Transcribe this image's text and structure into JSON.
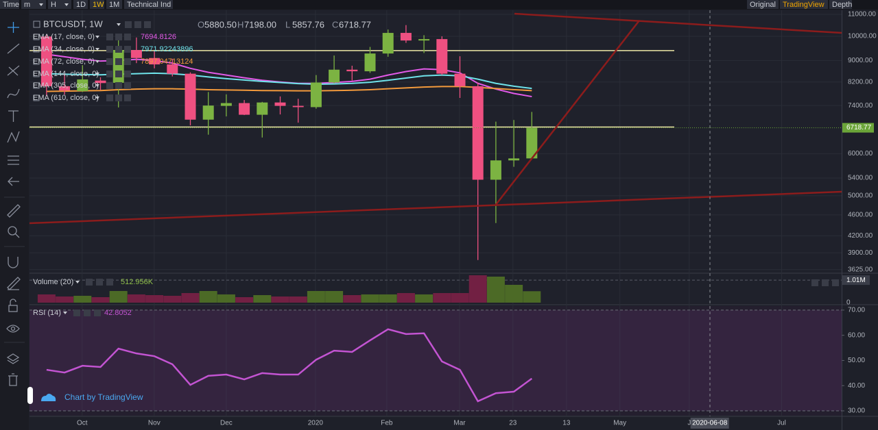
{
  "toolbar": {
    "left": [
      "Time",
      "m",
      "H",
      "1D",
      "1W",
      "1M",
      "Technical Ind"
    ],
    "right": [
      "Original",
      "TradingView",
      "Depth"
    ]
  },
  "chart_data": [
    {
      "type": "candlestick",
      "symbol": "BTCUSDT, 1W",
      "ohlc_legend": [
        {
          "key": "O",
          "label": "5880.50"
        },
        {
          "key": "H",
          "label": "7198.00"
        },
        {
          "key": "L",
          "label": "5857.76"
        },
        {
          "key": "C",
          "label": "6718.77"
        }
      ],
      "open": [
        9990,
        8050,
        7880,
        8250,
        8170,
        9420,
        9100,
        8850,
        8500,
        6960,
        7390,
        7480,
        7110,
        7500,
        7390,
        7350,
        8180,
        8650,
        8590,
        9280,
        10150,
        9820,
        9880,
        8500,
        8050,
        5360,
        5830,
        5880.5
      ],
      "high": [
        10090,
        8500,
        8820,
        8370,
        10050,
        9950,
        9370,
        9070,
        8550,
        7850,
        7770,
        7580,
        7520,
        7700,
        7620,
        8450,
        9200,
        8800,
        9550,
        10300,
        10500,
        10050,
        10000,
        9170,
        8180,
        6900,
        6950,
        7198
      ],
      "low": [
        7710,
        7760,
        7850,
        7920,
        7340,
        8900,
        8700,
        8400,
        6790,
        6520,
        7060,
        7100,
        6440,
        7120,
        6870,
        7300,
        8150,
        8250,
        8530,
        9150,
        9720,
        9300,
        8450,
        7650,
        3780,
        4440,
        5670,
        5857.76
      ],
      "close": [
        8050,
        7900,
        8290,
        8160,
        9420,
        9100,
        8850,
        8500,
        6960,
        7400,
        7480,
        7110,
        7500,
        7390,
        7350,
        8180,
        8650,
        8590,
        9280,
        10150,
        9820,
        9880,
        8500,
        8050,
        5360,
        5830,
        5880.5,
        6718.77
      ],
      "up_color": "#7cb342",
      "down_color": "#ef5081",
      "series": [
        {
          "name": "EMA (17, close, 0)",
          "color": "#e35ae8",
          "values": [
            9250,
            9150,
            9050,
            8980,
            9000,
            9050,
            9000,
            8900,
            8700,
            8550,
            8450,
            8350,
            8260,
            8200,
            8150,
            8150,
            8180,
            8220,
            8300,
            8450,
            8580,
            8680,
            8650,
            8530,
            8150,
            7950,
            7800,
            7694.8126
          ]
        },
        {
          "name": "EMA (34, close, 0)",
          "color": "#6fe3ea",
          "values": [
            8500,
            8480,
            8470,
            8460,
            8480,
            8500,
            8520,
            8500,
            8450,
            8380,
            8320,
            8270,
            8220,
            8180,
            8140,
            8120,
            8130,
            8150,
            8190,
            8260,
            8340,
            8420,
            8450,
            8420,
            8300,
            8150,
            8050,
            7971.92243896
          ]
        },
        {
          "name": "EMA (72, close, 0)",
          "color": "#f39a3c",
          "values": [
            7870,
            7880,
            7890,
            7900,
            7930,
            7950,
            7960,
            7960,
            7950,
            7930,
            7920,
            7910,
            7900,
            7895,
            7890,
            7890,
            7900,
            7910,
            7930,
            7960,
            7990,
            8020,
            8040,
            8040,
            8010,
            7970,
            7930,
            7897.04713124
          ]
        }
      ],
      "inactive_indicators": [
        "EMA (144, close, 0)",
        "EMA (305, close, 0)",
        "EMA (610, close, 0)"
      ],
      "hlines": [
        9400,
        6740
      ],
      "hline_color": "#ede7a6",
      "last_price_color": "#6ba539",
      "log_scale": true,
      "grid": true,
      "xlim": [
        -0.95,
        44.24
      ],
      "ylim": [
        3580,
        11200
      ],
      "yticks": [
        {
          "value": 11000,
          "label": "11000.00"
        },
        {
          "value": 10000,
          "label": "10000.00"
        },
        {
          "value": 9000,
          "label": "9000.00"
        },
        {
          "value": 8200,
          "label": "8200.00"
        },
        {
          "value": 7400,
          "label": "7400.00"
        },
        {
          "value": 6000,
          "label": "6000.00"
        },
        {
          "value": 5400,
          "label": "5400.00"
        },
        {
          "value": 5000,
          "label": "5000.00"
        },
        {
          "value": 4600,
          "label": "4600.00"
        },
        {
          "value": 4200,
          "label": "4200.00"
        },
        {
          "value": 3900,
          "label": "3900.00"
        },
        {
          "value": 3625,
          "label": "3625.00"
        }
      ]
    },
    {
      "type": "bar",
      "title": "Volume (20)",
      "last_label": "512.956K",
      "values": [
        369000,
        276000,
        307000,
        246000,
        522000,
        369000,
        338000,
        307000,
        430000,
        522000,
        369000,
        246000,
        338000,
        276000,
        276000,
        522000,
        522000,
        338000,
        369000,
        369000,
        430000,
        369000,
        430000,
        430000,
        1229000,
        1167000,
        799000,
        512956
      ],
      "up_color": "#4c6a26",
      "down_color": "#722043",
      "xlim": [
        -0.95,
        44.24
      ],
      "ylim": [
        0,
        1290000
      ],
      "yticks": [
        {
          "value": 1010000,
          "label": "1.01M"
        },
        0
      ]
    },
    {
      "type": "line",
      "title": "RSI (14)",
      "color": "#c354d2",
      "values": [
        46.3,
        45.2,
        47.9,
        47.4,
        54.7,
        52.8,
        51.7,
        48.5,
        40.3,
        43.9,
        44.4,
        42.5,
        45.0,
        44.4,
        44.4,
        50.3,
        53.9,
        53.4,
        58.0,
        62.4,
        60.5,
        60.8,
        49.6,
        46.3,
        33.8,
        37.0,
        37.6,
        42.8052
      ],
      "band": {
        "from": 30,
        "to": 70,
        "color": "#7e3f8f"
      },
      "xlim": [
        -0.95,
        44.24
      ],
      "ylim": [
        28.1,
        71.6
      ],
      "yticks": [
        {
          "value": 70,
          "label": "70.00"
        },
        {
          "value": 60,
          "label": "60.00"
        },
        {
          "value": 50,
          "label": "50.00"
        },
        {
          "value": 40,
          "label": "40.00"
        },
        {
          "value": 30,
          "label": "30.00"
        }
      ],
      "xticks": [
        {
          "value": 1.98,
          "label": "Oct"
        },
        {
          "value": 5.99,
          "label": "Nov"
        },
        {
          "value": 10.0,
          "label": "Dec"
        },
        {
          "value": 14.96,
          "label": "2020"
        },
        {
          "value": 18.93,
          "label": "Feb"
        },
        {
          "value": 22.98,
          "label": "Mar"
        },
        {
          "value": 25.95,
          "label": "23"
        },
        {
          "value": 28.93,
          "label": "13"
        },
        {
          "value": 31.9,
          "label": "May"
        },
        {
          "value": 35.76,
          "label": "J"
        },
        {
          "value": 36.9,
          "label": "2020-06-08"
        },
        {
          "value": 40.9,
          "label": "Jul"
        }
      ],
      "highlight_tick": 10
    }
  ],
  "watermark": "Chart by TradingView"
}
